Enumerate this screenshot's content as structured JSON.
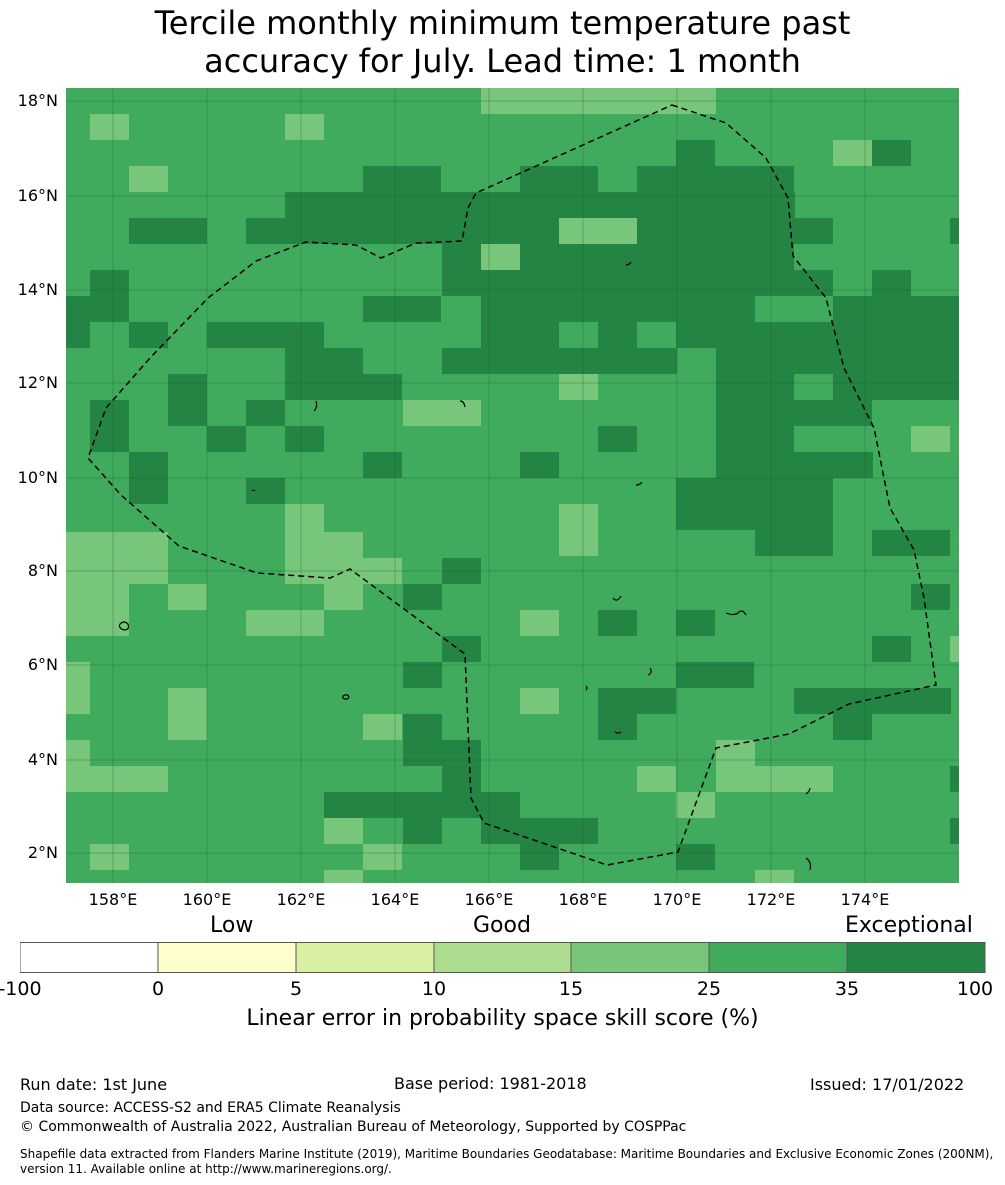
{
  "title": {
    "line1": "Tercile monthly minimum temperature past",
    "line2": "accuracy for July. Lead time: 1 month"
  },
  "map": {
    "lat_labels": [
      "18°N",
      "16°N",
      "14°N",
      "12°N",
      "10°N",
      "8°N",
      "6°N",
      "4°N",
      "2°N"
    ],
    "lon_labels": [
      "158°E",
      "160°E",
      "162°E",
      "164°E",
      "166°E",
      "168°E",
      "170°E",
      "172°E",
      "174°E"
    ],
    "colors": {
      "light": "#78c679",
      "mid": "#41ab5d",
      "dark": "#238443",
      "outline": "#000000"
    }
  },
  "colorbar": {
    "skill_labels": [
      "Low",
      "Good",
      "Exceptional"
    ],
    "ticks": [
      "-100",
      "0",
      "5",
      "10",
      "15",
      "25",
      "35",
      "100"
    ],
    "colors": [
      "#ffffff",
      "#ffffcc",
      "#d9f0a3",
      "#addd8e",
      "#78c679",
      "#41ab5d",
      "#238443"
    ],
    "label": "Linear error in probability space skill score (%)"
  },
  "footer": {
    "run_date": "Run date: 1st June",
    "base_period": "Base period: 1981-2018",
    "issued": "Issued: 17/01/2022",
    "data_source": "Data source: ACCESS-S2 and ERA5 Climate Reanalysis",
    "copyright": "© Commonwealth of Australia 2022, Australian Bureau of Meteorology, Supported by COSPPac",
    "shapefile1": "Shapefile data extracted from Flanders Marine Institute (2019), Maritime Boundaries Geodatabase: Maritime Boundaries and Exclusive Economic Zones (200NM),",
    "shapefile2": "version 11. Available online at http://www.marineregions.org/."
  }
}
